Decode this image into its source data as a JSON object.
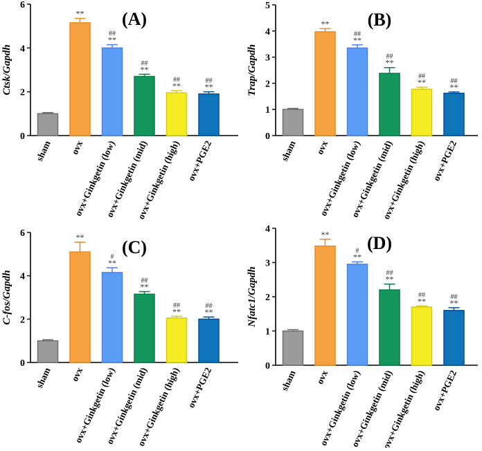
{
  "figure": {
    "categories": [
      "sham",
      "ovx",
      "ovx+Ginkgetin (low)",
      "ovx+Ginkgetin (mid)",
      "ovx+Ginkgetin (high)",
      "ovx+PGE2"
    ],
    "colors": [
      "#9b9b9d",
      "#f7a240",
      "#5a9cf6",
      "#13975c",
      "#f5ec21",
      "#0e75bb"
    ],
    "edge_colors": [
      "#6f6f71",
      "#e88a26",
      "#4a7ff0",
      "#0b7a45",
      "#d8c912",
      "#0b4f8c"
    ]
  },
  "chart_data": [
    {
      "type": "bar",
      "panel": "(A)",
      "ylabel": "Ctsk/Gapdh",
      "ylim": [
        0,
        6
      ],
      "yticks": [
        "0",
        "2",
        "4",
        "6"
      ],
      "categories": [
        "sham",
        "ovx",
        "ovx+Ginkgetin (low)",
        "ovx+Ginkgetin (mid)",
        "ovx+Ginkgetin (high)",
        "ovx+PGE2"
      ],
      "values": [
        1.0,
        5.15,
        4.0,
        2.7,
        1.95,
        1.9
      ],
      "errors": [
        0.05,
        0.2,
        0.15,
        0.1,
        0.1,
        0.1
      ],
      "annotations": [
        [],
        [
          "**"
        ],
        [
          "##",
          "**"
        ],
        [
          "##",
          "**"
        ],
        [
          "##",
          "**"
        ],
        [
          "##",
          "**"
        ]
      ]
    },
    {
      "type": "bar",
      "panel": "(B)",
      "ylabel": "Trap/Gapdh",
      "ylim": [
        0,
        5
      ],
      "yticks": [
        "0",
        "1",
        "2",
        "3",
        "4",
        "5"
      ],
      "categories": [
        "sham",
        "ovx",
        "ovx+Ginkgetin (low)",
        "ovx+Ginkgetin (mid)",
        "ovx+Ginkgetin (high)",
        "ovx+PGE2"
      ],
      "values": [
        1.0,
        3.97,
        3.35,
        2.38,
        1.77,
        1.62
      ],
      "errors": [
        0.04,
        0.12,
        0.12,
        0.22,
        0.08,
        0.05
      ],
      "annotations": [
        [],
        [
          "**"
        ],
        [
          "##",
          "**"
        ],
        [
          "##",
          "**"
        ],
        [
          "##",
          "**"
        ],
        [
          "##",
          "**"
        ]
      ]
    },
    {
      "type": "bar",
      "panel": "(C)",
      "ylabel": "C-fos/Gapdh",
      "ylim": [
        0,
        6
      ],
      "yticks": [
        "0",
        "2",
        "4",
        "6"
      ],
      "categories": [
        "sham",
        "ovx",
        "ovx+Ginkgetin (low)",
        "ovx+Ginkgetin (mid)",
        "ovx+Ginkgetin (high)",
        "ovx+PGE2"
      ],
      "values": [
        1.0,
        5.1,
        4.15,
        3.15,
        2.05,
        2.0
      ],
      "errors": [
        0.05,
        0.45,
        0.22,
        0.12,
        0.08,
        0.1
      ],
      "annotations": [
        [],
        [
          "**"
        ],
        [
          "#",
          "**"
        ],
        [
          "##",
          "**"
        ],
        [
          "##",
          "**"
        ],
        [
          "##",
          "**"
        ]
      ]
    },
    {
      "type": "bar",
      "panel": "(D)",
      "ylabel": "Nfatc1/Gapdh",
      "ylim": [
        0,
        4
      ],
      "yticks": [
        "0",
        "1",
        "2",
        "3",
        "4"
      ],
      "categories": [
        "sham",
        "ovx",
        "ovx+Ginkgetin (low)",
        "ovx+Ginkgetin (mid)",
        "ovx+Ginkgetin (high)",
        "ovx+PGE2"
      ],
      "values": [
        1.0,
        3.48,
        2.95,
        2.2,
        1.7,
        1.6
      ],
      "errors": [
        0.04,
        0.2,
        0.07,
        0.17,
        0.03,
        0.08
      ],
      "annotations": [
        [],
        [
          "**"
        ],
        [
          "#",
          "**"
        ],
        [
          "##",
          "**"
        ],
        [
          "##",
          "**"
        ],
        [
          "##",
          "**"
        ]
      ]
    }
  ]
}
